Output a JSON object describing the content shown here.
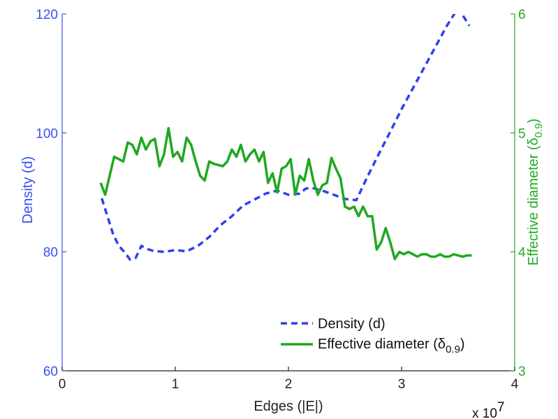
{
  "chart_data": {
    "type": "line",
    "xlabel": "Edges (|E|)",
    "ylabel_left": "Density (d)",
    "ylabel_right": "Effective diameter (δ0.9)",
    "ylabel_right_parts": {
      "main": "Effective diameter (δ",
      "sub": "0.9",
      "close": ")"
    },
    "x_exponent": {
      "base": "x 10",
      "power": "7"
    },
    "xlim": [
      0,
      4
    ],
    "ylim_left": [
      60,
      120
    ],
    "ylim_right": [
      3,
      6
    ],
    "x_ticks": [
      0,
      1,
      2,
      3,
      4
    ],
    "y_ticks_left": [
      60,
      80,
      100,
      120
    ],
    "y_ticks_right": [
      3,
      4,
      5,
      6
    ],
    "grid": false,
    "legend_placement": "bottom-right",
    "series": [
      {
        "name": "Density (d)",
        "axis": "left",
        "color": "#3040ee",
        "style": "dashed",
        "x": [
          0.35,
          0.4,
          0.45,
          0.5,
          0.55,
          0.6,
          0.65,
          0.7,
          0.75,
          0.8,
          0.9,
          1.0,
          1.1,
          1.2,
          1.3,
          1.4,
          1.5,
          1.6,
          1.7,
          1.8,
          1.9,
          2.0,
          2.1,
          2.15,
          2.2,
          2.3,
          2.4,
          2.5,
          2.6,
          2.7,
          2.8,
          2.9,
          3.0,
          3.1,
          3.2,
          3.3,
          3.4,
          3.5,
          3.6
        ],
        "y": [
          89,
          86,
          83,
          81,
          80,
          78.7,
          79,
          81,
          80.5,
          80.2,
          80,
          80.3,
          80.1,
          81,
          82.5,
          84.5,
          86,
          87.8,
          88.8,
          89.8,
          90.3,
          89.6,
          89.8,
          90.6,
          90.8,
          90.3,
          89.6,
          88.9,
          88.7,
          92.7,
          96.5,
          100.2,
          104,
          107.5,
          111,
          114.5,
          118,
          121,
          118
        ]
      },
      {
        "name": "Effective diameter (δ0.9)",
        "axis": "right",
        "color": "#1fa81f",
        "style": "solid",
        "x": [
          0.34,
          0.38,
          0.42,
          0.46,
          0.5,
          0.54,
          0.58,
          0.62,
          0.66,
          0.7,
          0.74,
          0.78,
          0.82,
          0.86,
          0.9,
          0.94,
          0.98,
          1.02,
          1.06,
          1.1,
          1.14,
          1.18,
          1.22,
          1.26,
          1.3,
          1.34,
          1.38,
          1.42,
          1.46,
          1.5,
          1.54,
          1.58,
          1.62,
          1.66,
          1.7,
          1.74,
          1.78,
          1.82,
          1.86,
          1.9,
          1.94,
          1.98,
          2.02,
          2.06,
          2.1,
          2.14,
          2.18,
          2.22,
          2.26,
          2.3,
          2.34,
          2.38,
          2.42,
          2.46,
          2.5,
          2.54,
          2.58,
          2.62,
          2.66,
          2.7,
          2.74,
          2.78,
          2.82,
          2.86,
          2.9,
          2.94,
          2.98,
          3.02,
          3.06,
          3.1,
          3.14,
          3.18,
          3.22,
          3.26,
          3.3,
          3.34,
          3.38,
          3.42,
          3.46,
          3.5,
          3.54,
          3.58,
          3.62
        ],
        "y": [
          4.58,
          4.48,
          4.64,
          4.8,
          4.78,
          4.76,
          4.92,
          4.9,
          4.82,
          4.96,
          4.86,
          4.93,
          4.95,
          4.72,
          4.82,
          5.04,
          4.8,
          4.84,
          4.76,
          4.96,
          4.9,
          4.76,
          4.64,
          4.6,
          4.76,
          4.74,
          4.73,
          4.72,
          4.76,
          4.86,
          4.8,
          4.9,
          4.76,
          4.82,
          4.86,
          4.76,
          4.84,
          4.58,
          4.66,
          4.5,
          4.7,
          4.72,
          4.78,
          4.48,
          4.64,
          4.6,
          4.78,
          4.6,
          4.48,
          4.56,
          4.58,
          4.79,
          4.7,
          4.62,
          4.38,
          4.36,
          4.38,
          4.3,
          4.38,
          4.3,
          4.3,
          4.02,
          4.08,
          4.2,
          4.08,
          3.94,
          4.0,
          3.98,
          4.0,
          3.98,
          3.96,
          3.98,
          3.98,
          3.96,
          3.96,
          3.98,
          3.96,
          3.96,
          3.98,
          3.97,
          3.96,
          3.97,
          3.97
        ]
      }
    ]
  }
}
